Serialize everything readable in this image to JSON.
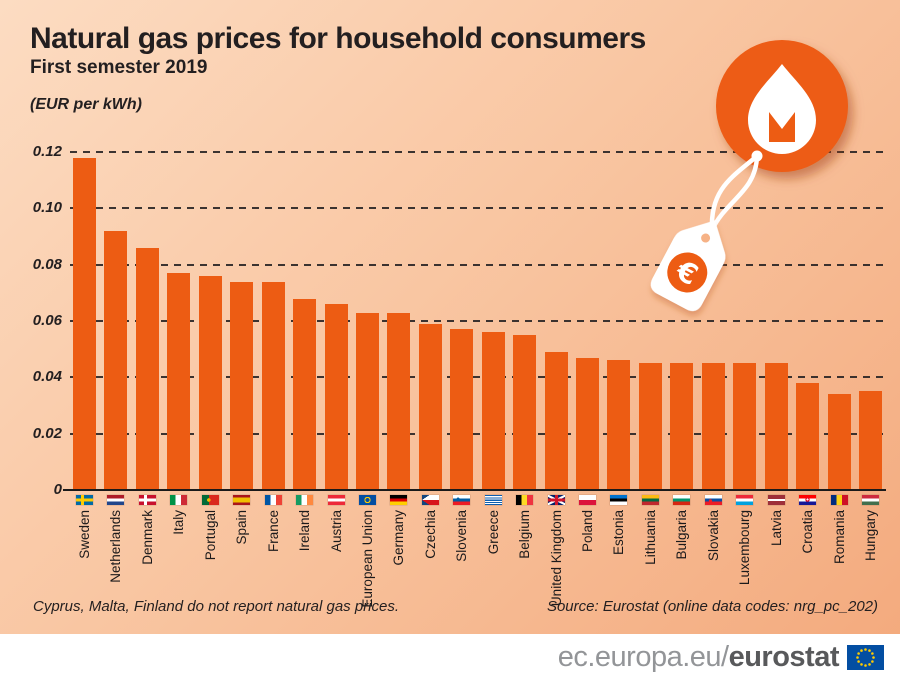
{
  "header": {
    "title": "Natural gas prices for household consumers",
    "subtitle": "First semester 2019",
    "unit": "(EUR per kWh)"
  },
  "chart_data": {
    "type": "bar",
    "title": "Natural gas prices for household consumers",
    "subtitle": "First semester 2019",
    "unit_label": "(EUR per kWh)",
    "ylim": [
      0,
      0.12
    ],
    "yticks": [
      0,
      0.02,
      0.04,
      0.06,
      0.08,
      0.1,
      0.12
    ],
    "ytick_labels": [
      "0",
      "0.02",
      "0.04",
      "0.06",
      "0.08",
      "0.10",
      "0.12"
    ],
    "grid": "dashed-horizontal",
    "legend": "none",
    "bar_color": "#ed5c13",
    "categories": [
      "Sweden",
      "Netherlands",
      "Denmark",
      "Italy",
      "Portugal",
      "Spain",
      "France",
      "Ireland",
      "Austria",
      "European Union",
      "Germany",
      "Czechia",
      "Slovenia",
      "Greece",
      "Belgium",
      "United Kingdom",
      "Poland",
      "Estonia",
      "Lithuania",
      "Bulgaria",
      "Slovakia",
      "Luxembourg",
      "Latvia",
      "Croatia",
      "Romania",
      "Hungary"
    ],
    "values": [
      0.118,
      0.092,
      0.086,
      0.077,
      0.076,
      0.074,
      0.074,
      0.068,
      0.066,
      0.063,
      0.063,
      0.059,
      0.057,
      0.056,
      0.055,
      0.049,
      0.047,
      0.046,
      0.045,
      0.045,
      0.045,
      0.045,
      0.045,
      0.038,
      0.034,
      0.035
    ],
    "flags": [
      "se",
      "nl",
      "dk",
      "it",
      "pt",
      "es",
      "fr",
      "ie",
      "at",
      "eu",
      "de",
      "cz",
      "si",
      "gr",
      "be",
      "uk",
      "pl",
      "ee",
      "lt",
      "bg",
      "sk",
      "lu",
      "lv",
      "hr",
      "ro",
      "hu"
    ]
  },
  "notes": {
    "footnote": "Cyprus, Malta, Finland do not report natural gas prices.",
    "source": "Source: Eurostat (online data codes: nrg_pc_202)"
  },
  "footer": {
    "url_prefix": "ec.europa.eu/",
    "url_bold": "eurostat"
  },
  "icons": {
    "flame": "flame-icon",
    "price_tag": "euro-price-tag-icon",
    "eu_flag": "eu-flag-icon"
  },
  "colors": {
    "accent_orange": "#ed5c13",
    "background_top": "#fcdcc2",
    "background_bottom": "#f3a97c",
    "eu_blue": "#034ea2",
    "star_yellow": "#ffcc00"
  }
}
